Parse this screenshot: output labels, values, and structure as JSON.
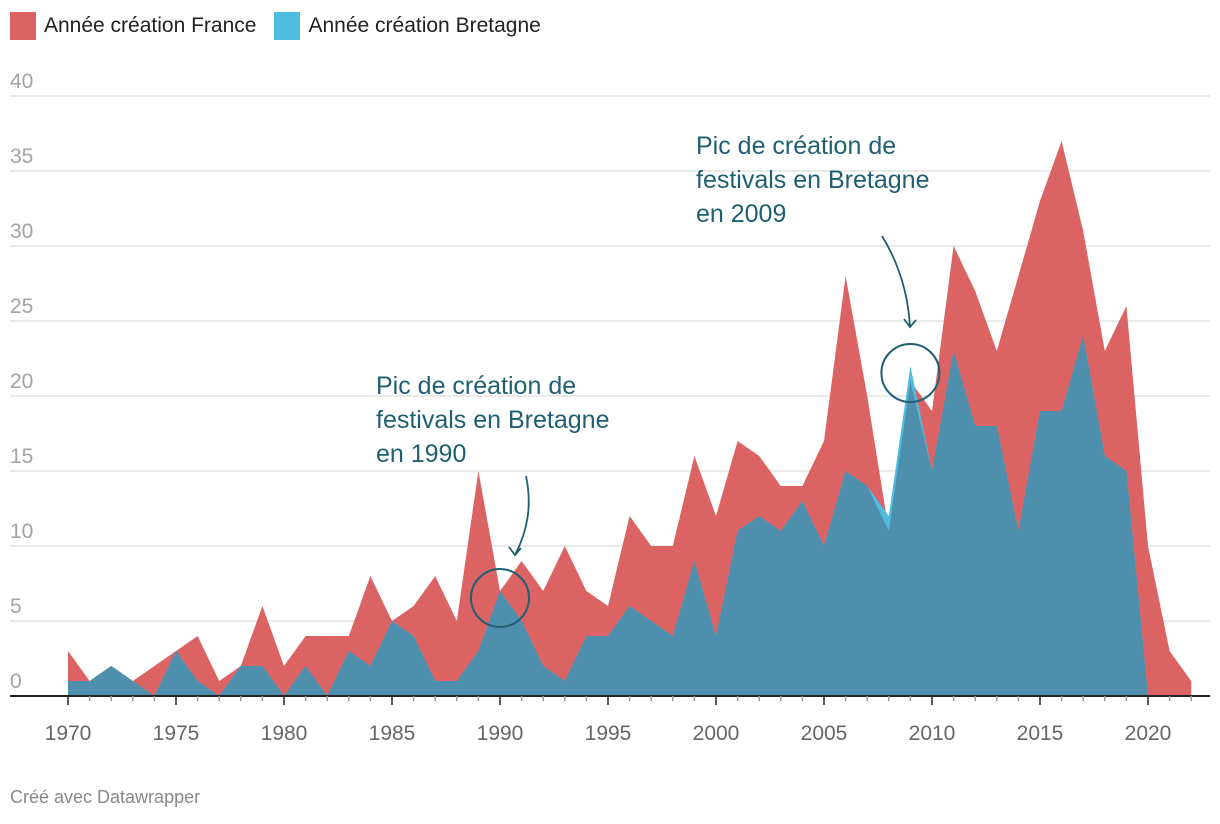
{
  "legend": {
    "france_label": "Année création France",
    "bretagne_label": "Année création Bretagne"
  },
  "colors": {
    "france": "#dc6363",
    "bretagne": "#4fbde0",
    "overlap": "#4f8fae",
    "annotation": "#1f5f73",
    "grid": "#e3e3e3",
    "axis": "#222222"
  },
  "annotations": [
    {
      "line1": "Pic de création de",
      "line2": "festivals en Bretagne",
      "line3": "en 1990",
      "year": 1990,
      "value": 7
    },
    {
      "line1": "Pic de création de",
      "line2": "festivals en Bretagne",
      "line3": "en 2009",
      "year": 2009,
      "value": 22
    }
  ],
  "credit": "Créé avec Datawrapper",
  "chart_data": {
    "type": "area",
    "ylim": [
      0,
      40
    ],
    "xlim": [
      1970,
      2022
    ],
    "yticks": [
      0,
      5,
      10,
      15,
      20,
      25,
      30,
      35,
      40
    ],
    "xticks": [
      1970,
      1975,
      1980,
      1985,
      1990,
      1995,
      2000,
      2005,
      2010,
      2015,
      2020
    ],
    "grid": true,
    "legend_position": "top-left",
    "x": [
      1970,
      1971,
      1972,
      1973,
      1974,
      1975,
      1976,
      1977,
      1978,
      1979,
      1980,
      1981,
      1982,
      1983,
      1984,
      1985,
      1986,
      1987,
      1988,
      1989,
      1990,
      1991,
      1992,
      1993,
      1994,
      1995,
      1996,
      1997,
      1998,
      1999,
      2000,
      2001,
      2002,
      2003,
      2004,
      2005,
      2006,
      2007,
      2008,
      2009,
      2010,
      2011,
      2012,
      2013,
      2014,
      2015,
      2016,
      2017,
      2018,
      2019,
      2020,
      2021,
      2022
    ],
    "series": [
      {
        "name": "Année création France",
        "values": [
          3,
          1,
          2,
          1,
          2,
          3,
          4,
          1,
          2,
          6,
          2,
          4,
          4,
          4,
          8,
          5,
          6,
          8,
          5,
          15,
          7,
          9,
          7,
          10,
          7,
          6,
          12,
          10,
          10,
          16,
          12,
          17,
          16,
          14,
          14,
          17,
          28,
          20,
          11,
          21,
          19,
          30,
          27,
          23,
          28,
          33,
          37,
          31,
          23,
          26,
          10,
          3,
          1
        ]
      },
      {
        "name": "Année création Bretagne",
        "values": [
          1,
          1,
          2,
          1,
          0,
          3,
          1,
          0,
          2,
          2,
          0,
          2,
          0,
          3,
          2,
          5,
          4,
          1,
          1,
          3,
          7,
          5,
          2,
          1,
          4,
          4,
          6,
          5,
          4,
          9,
          4,
          11,
          12,
          11,
          13,
          10,
          15,
          14,
          12,
          22,
          15,
          23,
          18,
          18,
          11,
          19,
          19,
          24,
          16,
          15,
          0,
          null,
          null
        ]
      }
    ]
  }
}
